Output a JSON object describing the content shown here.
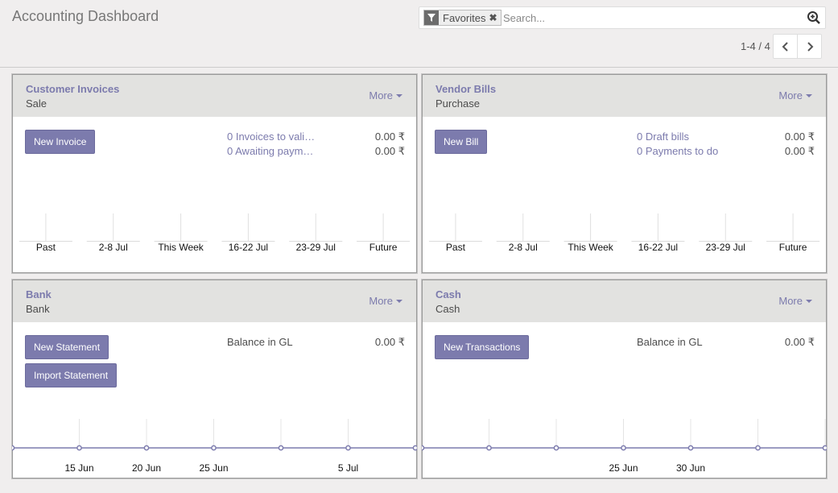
{
  "page": {
    "title": "Accounting Dashboard"
  },
  "search": {
    "facet_label": "Favorites",
    "facet_icon": "filter-icon",
    "placeholder": "Search...",
    "value": ""
  },
  "pager": {
    "value": "1-4 / 4"
  },
  "colors": {
    "accent": "#7c7bad",
    "header_bg": "#e2e2e0",
    "page_bg": "#f0eeee"
  },
  "cards": [
    {
      "title": "Customer Invoices",
      "subtitle": "Sale",
      "more": "More",
      "buttons": [
        "New Invoice"
      ],
      "stats": [
        {
          "label": "0 Invoices to vali…",
          "value": "0.00 ₹"
        },
        {
          "label": "0 Awaiting paym…",
          "value": "0.00 ₹"
        }
      ],
      "chart_data": {
        "type": "bar",
        "categories": [
          "Past",
          "2-8 Jul",
          "This Week",
          "16-22 Jul",
          "23-29 Jul",
          "Future"
        ],
        "values": [
          0,
          0,
          0,
          0,
          0,
          0
        ]
      }
    },
    {
      "title": "Vendor Bills",
      "subtitle": "Purchase",
      "more": "More",
      "buttons": [
        "New Bill"
      ],
      "stats": [
        {
          "label": "0 Draft bills",
          "value": "0.00 ₹"
        },
        {
          "label": "0 Payments to do",
          "value": "0.00 ₹"
        }
      ],
      "chart_data": {
        "type": "bar",
        "categories": [
          "Past",
          "2-8 Jul",
          "This Week",
          "16-22 Jul",
          "23-29 Jul",
          "Future"
        ],
        "values": [
          0,
          0,
          0,
          0,
          0,
          0
        ]
      }
    },
    {
      "title": "Bank",
      "subtitle": "Bank",
      "more": "More",
      "buttons": [
        "New Statement",
        "Import Statement"
      ],
      "stats": [
        {
          "label": "Balance in GL",
          "value": "0.00 ₹"
        }
      ],
      "chart_data": {
        "type": "line",
        "tick_labels": [
          "15 Jun",
          "20 Jun",
          "25 Jun",
          "",
          "5 Jul"
        ],
        "values": [
          0,
          0,
          0,
          0,
          0,
          0,
          0
        ]
      }
    },
    {
      "title": "Cash",
      "subtitle": "Cash",
      "more": "More",
      "buttons": [
        "New Transactions"
      ],
      "stats": [
        {
          "label": "Balance in GL",
          "value": "0.00 ₹"
        }
      ],
      "chart_data": {
        "type": "line",
        "tick_labels": [
          "",
          "",
          "25 Jun",
          "30 Jun",
          "",
          ""
        ],
        "values": [
          0,
          0,
          0,
          0,
          0,
          0,
          0,
          0
        ]
      }
    }
  ]
}
